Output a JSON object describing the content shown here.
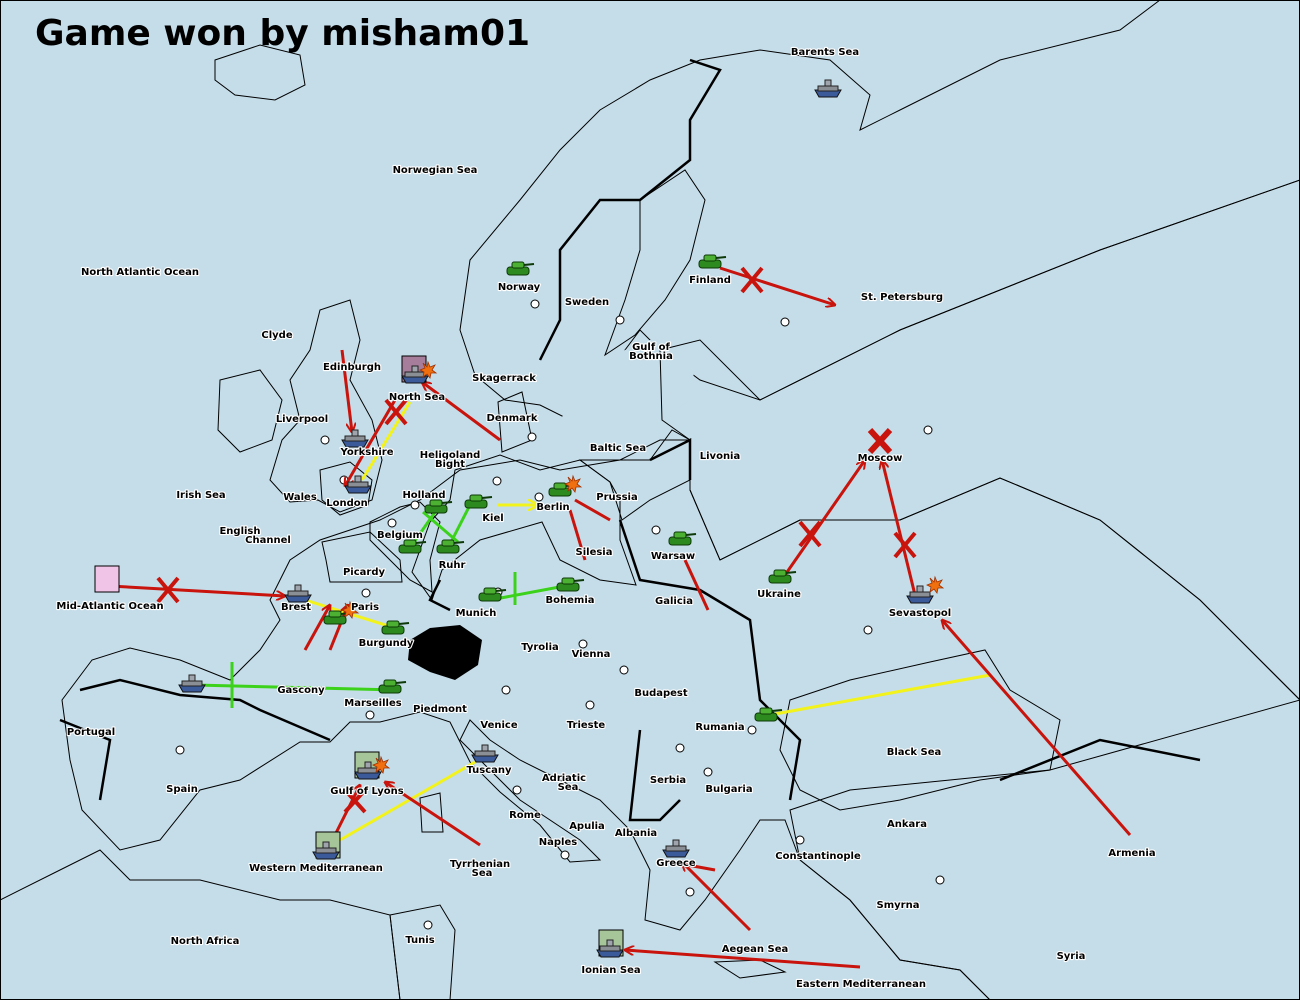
{
  "title": "Game won by misham01",
  "colors": {
    "sea": "#c5dde9",
    "england": "#f0c4e6",
    "germany": "#a67e9c",
    "neutral": "#a6c69a",
    "france": "#e2c49c",
    "move": "#c8140c",
    "support": "#f2f21c",
    "hold": "#3cd21c"
  },
  "regions": [
    "Barents Sea",
    "Norwegian Sea",
    "North Atlantic Ocean",
    "Finland",
    "St. Petersburg",
    "Norway",
    "Sweden",
    "Clyde",
    "Gulf of",
    "Bothnia",
    "Edinburgh",
    "Skagerrack",
    "North Sea",
    "Liverpool",
    "Denmark",
    "Baltic Sea",
    "Yorkshire",
    "Heligoland",
    "Bight",
    "Livonia",
    "Moscow",
    "Irish Sea",
    "Wales",
    "Holland",
    "Prussia",
    "London",
    "Berlin",
    "Kiel",
    "English",
    "Channel",
    "Belgium",
    "Silesia",
    "Warsaw",
    "Ruhr",
    "Picardy",
    "Ukraine",
    "Mid-Atlantic Ocean",
    "Brest",
    "Paris",
    "Bohemia",
    "Galicia",
    "Munich",
    "Sevastopol",
    "Burgundy",
    "Tyrolia",
    "Vienna",
    "Gascony",
    "Budapest",
    "Marseilles",
    "Piedmont",
    "Venice",
    "Trieste",
    "Rumania",
    "Portugal",
    "Black Sea",
    "Tuscany",
    "Adriatic",
    "Sea",
    "Serbia",
    "Gulf of Lyons",
    "Bulgaria",
    "Spain",
    "Rome",
    "Apulia",
    "Ankara",
    "Albania",
    "Naples",
    "Armenia",
    "Constantinople",
    "Greece",
    "Tyrrhenian",
    "Sea",
    "Western Mediterranean",
    "Smyrna",
    "North Africa",
    "Tunis",
    "Aegean Sea",
    "Syria",
    "Ionian Sea",
    "Eastern Mediterranean"
  ],
  "icons": {
    "army": "tank-icon",
    "fleet": "battleship-icon",
    "dislodged": "explosion-icon",
    "failed": "cross-icon"
  }
}
